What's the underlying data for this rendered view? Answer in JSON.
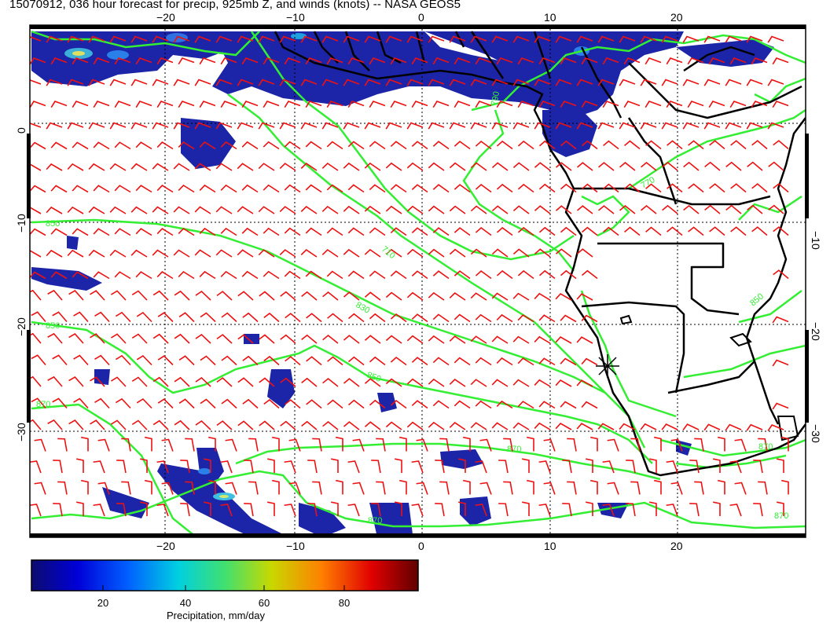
{
  "title": "15070912, 036 hour forecast for precip, 925mb Z, and winds (knots) -- NASA GEOS5",
  "map": {
    "lon_range": [
      -30,
      30
    ],
    "lat_range": [
      -40,
      10
    ],
    "lon_ticks_top": [
      "−20",
      "−10",
      "0",
      "10",
      "20"
    ],
    "lon_ticks_bottom": [
      "−20",
      "−10",
      "0",
      "10",
      "20"
    ],
    "lat_ticks_left": [
      "0",
      "−10",
      "−20",
      "−30"
    ],
    "lat_ticks_right": [
      "−10",
      "−20",
      "−30"
    ],
    "contour_labels": [
      "790",
      "710",
      "830",
      "850",
      "850",
      "870",
      "870",
      "870",
      "870",
      "870",
      "850",
      "770",
      "850"
    ],
    "colors": {
      "precip_dark": "#1a1a8c",
      "precip_mid": "#2b3fcf",
      "contour": "#33ee33",
      "wind_barb": "#ee1111",
      "coast": "#000000"
    },
    "marker": "station-star"
  },
  "colorbar": {
    "label": "Precipitation, mm/day",
    "ticks": [
      "20",
      "40",
      "60",
      "80"
    ],
    "colors": [
      "#00007f",
      "#0000ff",
      "#00bfff",
      "#7fff7f",
      "#ffff00",
      "#ff7f00",
      "#ff0000",
      "#7f0000"
    ]
  }
}
